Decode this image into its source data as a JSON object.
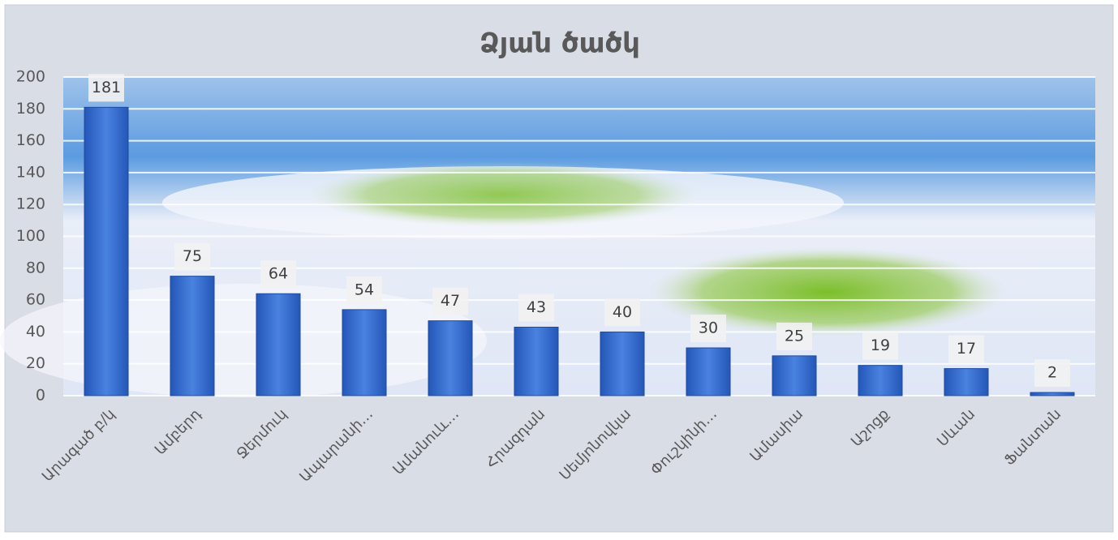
{
  "chart_data": {
    "type": "bar",
    "title": "Ձյան ծածկ",
    "categories": [
      "Արագած բ/կ",
      "Ամբերդ",
      "Ջերմուկ",
      "Ապարանի…",
      "Ամանուև…",
      "Հրազդան",
      "Սեմյոնովկա",
      "Փուշկինի…",
      "Ամասիա",
      "Աշոցք",
      "Սևան",
      "Ֆանտան"
    ],
    "values": [
      181,
      75,
      64,
      54,
      47,
      43,
      40,
      30,
      25,
      19,
      17,
      2
    ],
    "color": "#3a6fd0",
    "ylim": [
      0,
      200
    ],
    "yticks": [
      0,
      20,
      40,
      60,
      80,
      100,
      120,
      140,
      160,
      180,
      200
    ],
    "grid": true
  }
}
